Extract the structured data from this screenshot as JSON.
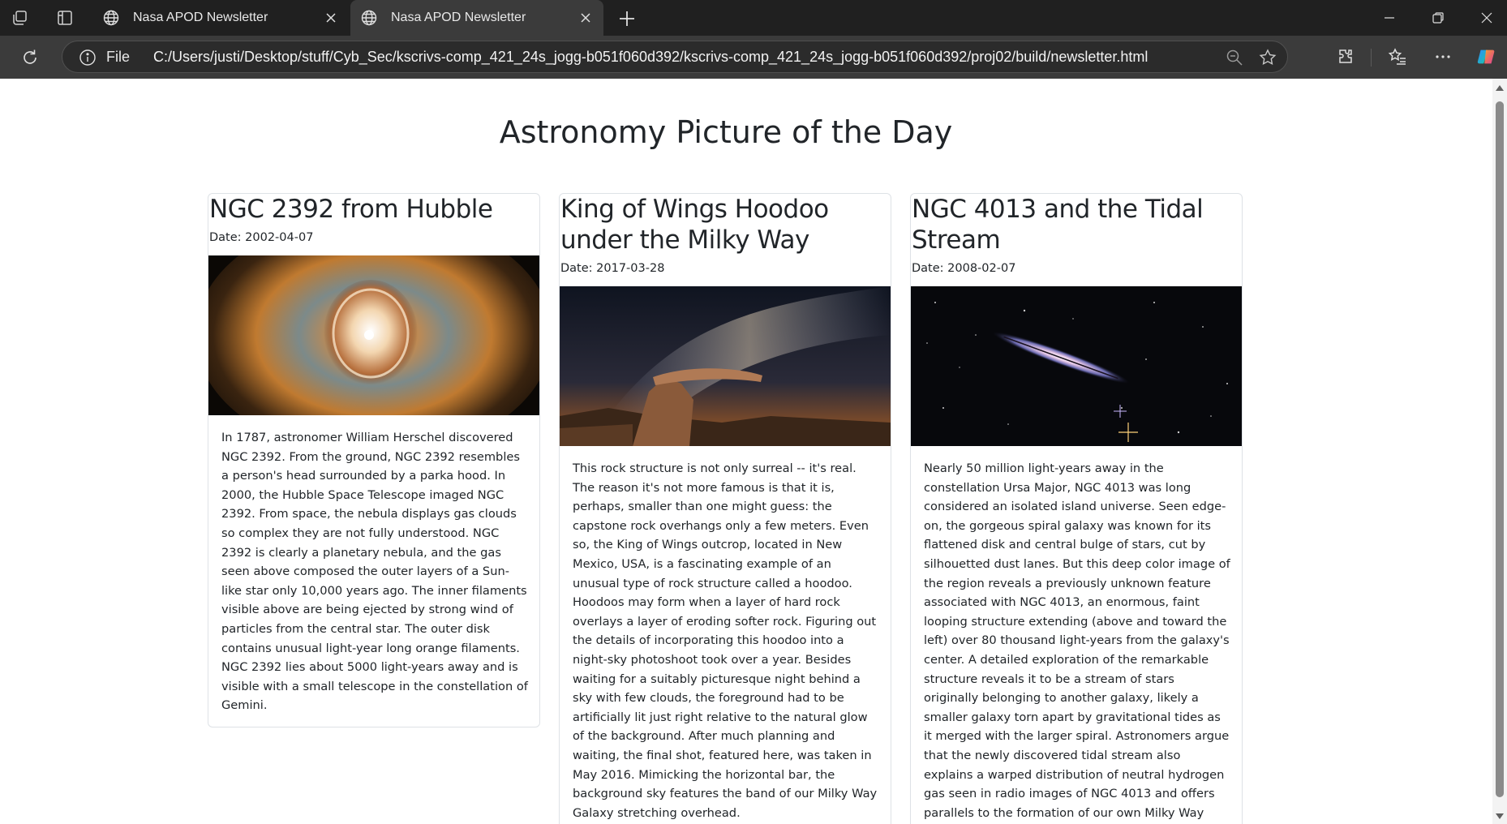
{
  "browser": {
    "tabs": [
      {
        "title": "Nasa APOD Newsletter",
        "active": false
      },
      {
        "title": "Nasa APOD Newsletter",
        "active": true
      }
    ],
    "address": {
      "scheme_label": "File",
      "url": "C:/Users/justi/Desktop/stuff/Cyb_Sec/kscrivs-comp_421_24s_jogg-b051f060d392/kscrivs-comp_421_24s_jogg-b051f060d392/proj02/build/newsletter.html"
    }
  },
  "page": {
    "title": "Astronomy Picture of the Day",
    "date_prefix": "Date: ",
    "articles": [
      {
        "title": "NGC 2392 from Hubble",
        "date": "Date: 2002-04-07",
        "image_alt": "Eskimo nebula NGC 2392",
        "description": "In 1787, astronomer William Herschel discovered NGC 2392. From the ground, NGC 2392 resembles a person's head surrounded by a parka hood. In 2000, the Hubble Space Telescope imaged NGC 2392. From space, the nebula displays gas clouds so complex they are not fully understood. NGC 2392 is clearly a planetary nebula, and the gas seen above composed the outer layers of a Sun-like star only 10,000 years ago. The inner filaments visible above are being ejected by strong wind of particles from the central star. The outer disk contains unusual light-year long orange filaments. NGC 2392 lies about 5000 light-years away and is visible with a small telescope in the constellation of Gemini."
      },
      {
        "title": "King of Wings Hoodoo under the Milky Way",
        "date": "Date: 2017-03-28",
        "image_alt": "King of Wings hoodoo under the Milky Way",
        "description": "This rock structure is not only surreal -- it's real. The reason it's not more famous is that it is, perhaps, smaller than one might guess: the capstone rock overhangs only a few meters. Even so, the King of Wings outcrop, located in New Mexico, USA, is a fascinating example of an unusual type of rock structure called a hoodoo. Hoodoos may form when a layer of hard rock overlays a layer of eroding softer rock. Figuring out the details of incorporating this hoodoo into a night-sky photoshoot took over a year. Besides waiting for a suitably picturesque night behind a sky with few clouds, the foreground had to be artificially lit just right relative to the natural glow of the background. After much planning and waiting, the final shot, featured here, was taken in May 2016. Mimicking the horizontal bar, the background sky features the band of our Milky Way Galaxy stretching overhead."
      },
      {
        "title": "NGC 4013 and the Tidal Stream",
        "date": "Date: 2008-02-07",
        "image_alt": "Edge-on spiral galaxy NGC 4013",
        "description": "Nearly 50 million light-years away in the constellation Ursa Major, NGC 4013 was long considered an isolated island universe. Seen edge-on, the gorgeous spiral galaxy was known for its flattened disk and central bulge of stars, cut by silhouetted dust lanes. But this deep color image of the region reveals a previously unknown feature associated with NGC 4013, an enormous, faint looping structure extending (above and toward the left) over 80 thousand light-years from the galaxy's center. A detailed exploration of the remarkable structure reveals it to be a stream of stars originally belonging to another galaxy, likely a smaller galaxy torn apart by gravitational tides as it merged with the larger spiral. Astronomers argue that the newly discovered tidal stream also explains a warped distribution of neutral hydrogen gas seen in radio images of NGC 4013 and offers parallels to the formation of our own Milky Way galaxy."
      }
    ]
  },
  "icons": {
    "workspaces": "workspaces-icon",
    "tab_actions": "tab-actions-icon",
    "globe": "globe-icon",
    "close": "close-icon",
    "new_tab": "plus-icon",
    "minimize": "minimize-icon",
    "restore": "restore-icon",
    "window_close": "window-close-icon",
    "reload": "reload-icon",
    "info": "info-icon",
    "zoom_out": "zoom-out-icon",
    "favorite": "star-icon",
    "extensions": "puzzle-icon",
    "favorites": "favorites-icon",
    "more": "more-icon",
    "copilot": "copilot-icon"
  },
  "colors": {
    "tabbar_bg": "#202020",
    "toolbar_bg": "#3b3b3b",
    "text": "#212529",
    "card_border": "#dee2e6"
  }
}
